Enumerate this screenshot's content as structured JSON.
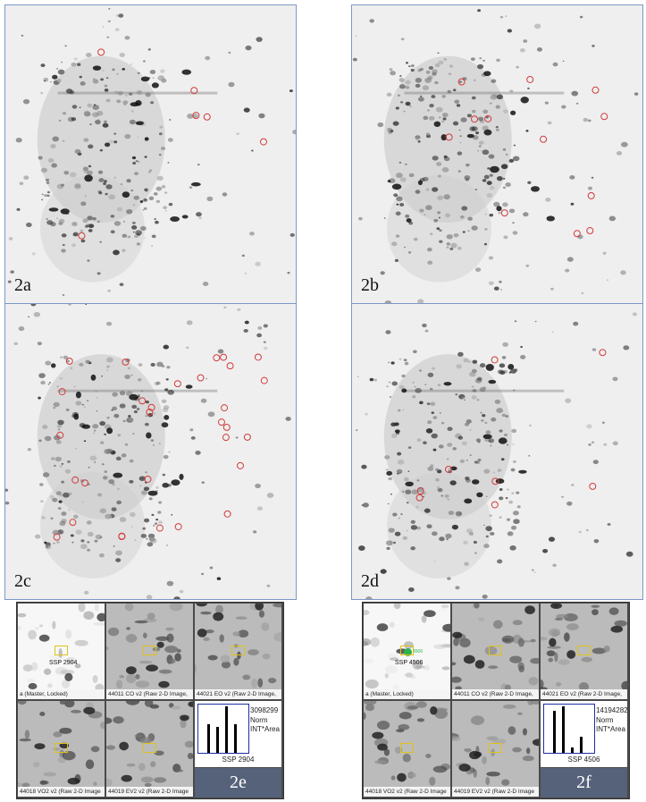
{
  "panels": [
    {
      "id": "2a",
      "label": "2a"
    },
    {
      "id": "2b",
      "label": "2b"
    },
    {
      "id": "2c",
      "label": "2c"
    },
    {
      "id": "2d",
      "label": "2d"
    }
  ],
  "strips": [
    {
      "tag": "2e",
      "cells": [
        {
          "caption": "a (Master, Locked)",
          "ssp": "SSP 2904"
        },
        {
          "caption": "44011 CO v2 (Raw 2-D Image,"
        },
        {
          "caption": "44021 EO v2 (Raw 2-D Image,"
        },
        {
          "caption": "44018 VO2 v2 (Raw 2-D Image"
        },
        {
          "caption": "44019 EV2 v2 (Raw 2-D Image"
        }
      ],
      "graph": {
        "value": "3098299",
        "line1": "Norm",
        "line2": "INT*Area",
        "ssp": "SSP 2904",
        "bars": [
          0.62,
          0.55,
          1.0,
          0.62
        ]
      }
    },
    {
      "tag": "2f",
      "cells": [
        {
          "caption": "a (Master, Locked)",
          "ssp": "SSP 4506",
          "spot_label": "4506"
        },
        {
          "caption": "44011 CO v2 (Raw 2-D Image,"
        },
        {
          "caption": "44021 EO v2 (Raw 2-D Image,"
        },
        {
          "caption": "44018 VO2 v2 (Raw 2-D Image"
        },
        {
          "caption": "44019 EV2 v2 (Raw 2-D Image"
        }
      ],
      "graph": {
        "value": "14194282",
        "line1": "Norm",
        "line2": "INT*Area",
        "ssp": "SSP 4506",
        "bars": [
          0.9,
          1.0,
          0.12,
          0.35
        ]
      }
    }
  ]
}
